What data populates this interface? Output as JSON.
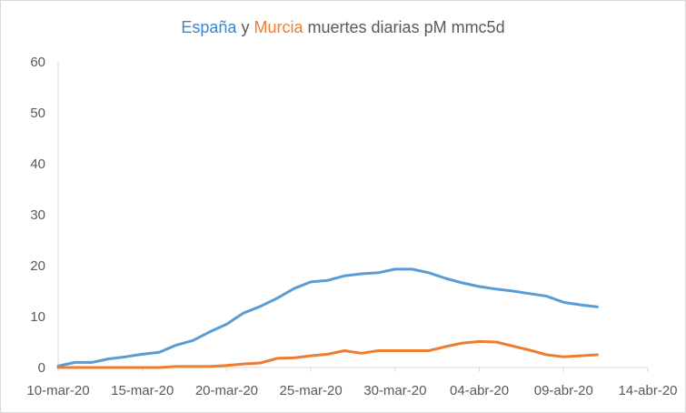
{
  "chart_data": {
    "type": "line",
    "title": {
      "series1_label": "España",
      "connector": "y",
      "series2_label": "Murcia",
      "rest": "muertes diarias pM mmc5d"
    },
    "xlabel": "",
    "ylabel": "",
    "x_range": [
      0,
      35
    ],
    "ylim": [
      0,
      60
    ],
    "y_ticks": [
      0,
      10,
      20,
      30,
      40,
      50,
      60
    ],
    "x_tick_days": [
      0,
      5,
      10,
      15,
      20,
      25,
      30,
      35
    ],
    "x_tick_labels": [
      "10-mar-20",
      "15-mar-20",
      "20-mar-20",
      "25-mar-20",
      "30-mar-20",
      "04-abr-20",
      "09-abr-20",
      "14-abr-20"
    ],
    "grid": false,
    "legend": "none",
    "series": [
      {
        "name": "España",
        "color": "#5b9bd5",
        "x": [
          0,
          1,
          2,
          3,
          4,
          5,
          6,
          7,
          8,
          9,
          10,
          11,
          12,
          13,
          14,
          15,
          16,
          17,
          18,
          19,
          20,
          21,
          22,
          23,
          24,
          25,
          26,
          27,
          28,
          29,
          30,
          31,
          32,
          33
        ],
        "values": [
          0.3,
          1.0,
          1.0,
          1.7,
          2.1,
          2.6,
          3.0,
          4.4,
          5.3,
          7.0,
          8.5,
          10.7,
          12.0,
          13.6,
          15.5,
          16.8,
          17.1,
          18.0,
          18.4,
          18.6,
          19.3,
          19.3,
          18.6,
          17.5,
          16.6,
          15.9,
          15.4,
          15.0,
          14.5,
          14.0,
          12.8,
          12.3,
          11.9,
          null
        ]
      },
      {
        "name": "Murcia",
        "color": "#ed7d31",
        "x": [
          0,
          1,
          2,
          3,
          4,
          5,
          6,
          7,
          8,
          9,
          10,
          11,
          12,
          13,
          14,
          15,
          16,
          17,
          18,
          19,
          20,
          21,
          22,
          23,
          24,
          25,
          26,
          27,
          28,
          29,
          30,
          31,
          32,
          33
        ],
        "values": [
          0,
          0,
          0,
          0,
          0,
          0,
          0,
          0.2,
          0.2,
          0.2,
          0.4,
          0.7,
          0.9,
          1.8,
          1.9,
          2.3,
          2.6,
          3.3,
          2.8,
          3.3,
          3.3,
          3.3,
          3.3,
          4.1,
          4.8,
          5.1,
          5.0,
          4.2,
          3.4,
          2.5,
          2.1,
          2.3,
          2.5,
          null
        ]
      }
    ]
  }
}
